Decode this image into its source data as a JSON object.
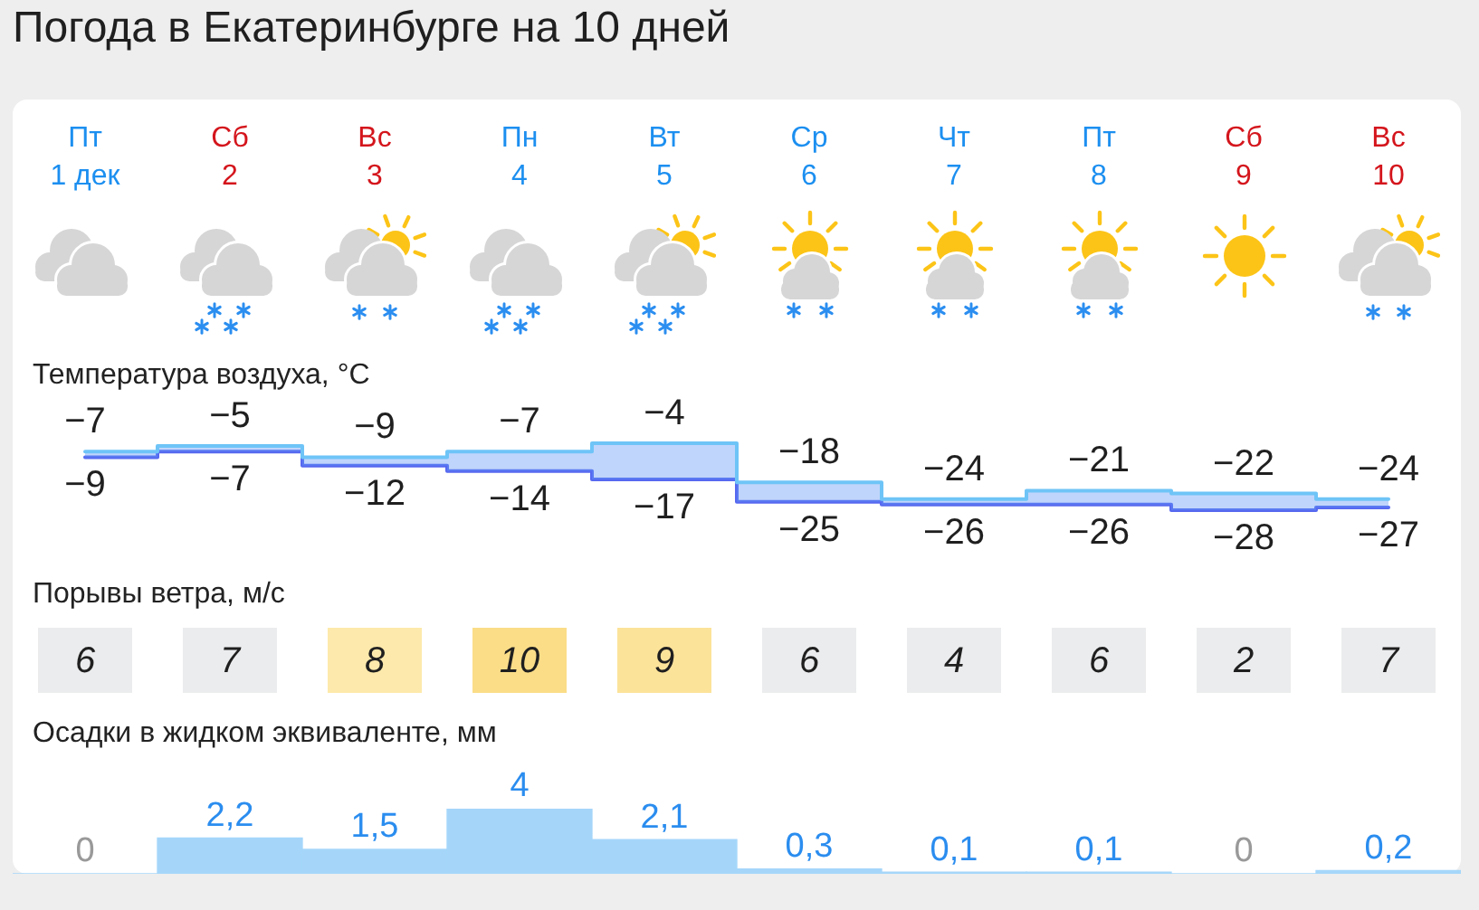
{
  "chart_data": [
    {
      "type": "step",
      "title": "Погода в Екатеринбурге на 10 дней",
      "subtitle": "Температура воздуха, °C",
      "categories": [
        "Пт 1 дек",
        "Сб 2",
        "Вс 3",
        "Пн 4",
        "Вт 5",
        "Ср 6",
        "Чт 7",
        "Пт 8",
        "Сб 9",
        "Вс 10"
      ],
      "series": [
        {
          "values": [
            -7,
            -5,
            -9,
            -7,
            -4,
            -18,
            -24,
            -21,
            -22,
            -24
          ],
          "color": "#6ec4f7"
        },
        {
          "values": [
            -9,
            -7,
            -12,
            -14,
            -17,
            -25,
            -26,
            -26,
            -28,
            -27
          ],
          "color": "#5668f0"
        }
      ],
      "data_labels": true
    },
    {
      "type": "heatmap",
      "title": "Порывы ветра, м/с",
      "categories": [
        null,
        null,
        null,
        null,
        null,
        null,
        null,
        null,
        null,
        null
      ],
      "y_categories": [
        null
      ],
      "cells": [
        [
          6,
          7,
          8,
          10,
          9,
          6,
          4,
          6,
          2,
          7
        ]
      ],
      "data_labels": true
    },
    {
      "type": "bar",
      "title": "Осадки в жидком эквиваленте, мм",
      "categories": [
        null,
        null,
        null,
        null,
        null,
        null,
        null,
        null,
        null,
        null
      ],
      "values": [
        0,
        2.2,
        1.5,
        4,
        2.1,
        0.3,
        0.1,
        0.1,
        0,
        0.2
      ],
      "value_labels": [
        "0",
        "2,2",
        "1,5",
        "4",
        "2,1",
        "0,3",
        "0,1",
        "0,1",
        "0",
        "0,2"
      ],
      "color": "#a5d6fa"
    }
  ]
}
